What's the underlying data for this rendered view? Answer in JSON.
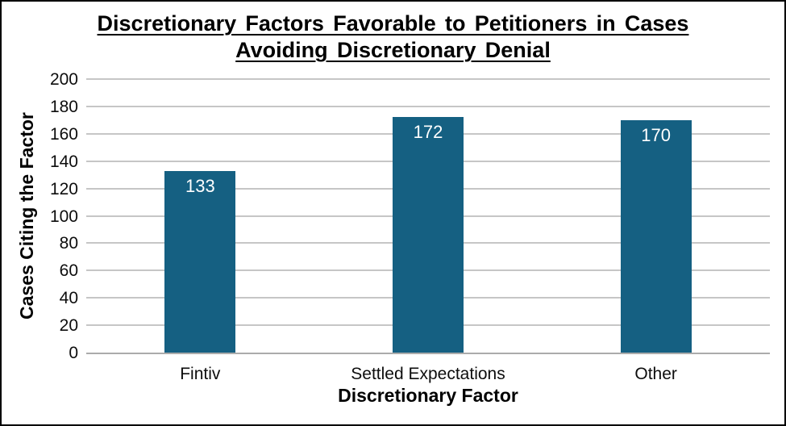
{
  "chart_data": {
    "type": "bar",
    "title": "Discretionary Factors Favorable to Petitioners in Cases Avoiding Discretionary Denial",
    "title_lines": [
      "Discretionary Factors Favorable to Petitioners in Cases",
      "Avoiding Discretionary Denial"
    ],
    "xlabel": "Discretionary Factor",
    "ylabel": "Cases Citing the Factor",
    "categories": [
      "Fintiv",
      "Settled Expectations",
      "Other"
    ],
    "values": [
      133,
      172,
      170
    ],
    "data_labels": [
      "133",
      "172",
      "170"
    ],
    "ylim": [
      0,
      200
    ],
    "ytick_interval": 20,
    "ytick_labels": [
      "0",
      "20",
      "40",
      "60",
      "80",
      "100",
      "120",
      "140",
      "160",
      "180",
      "200"
    ],
    "grid": true,
    "legend": "none",
    "colors": {
      "bar": "#156082",
      "data_label": "#ffffff",
      "gridline": "#c6c6c6",
      "axis_line": "#ababab",
      "text": "#000000",
      "background": "#ffffff",
      "frame_border": "#000000"
    }
  }
}
